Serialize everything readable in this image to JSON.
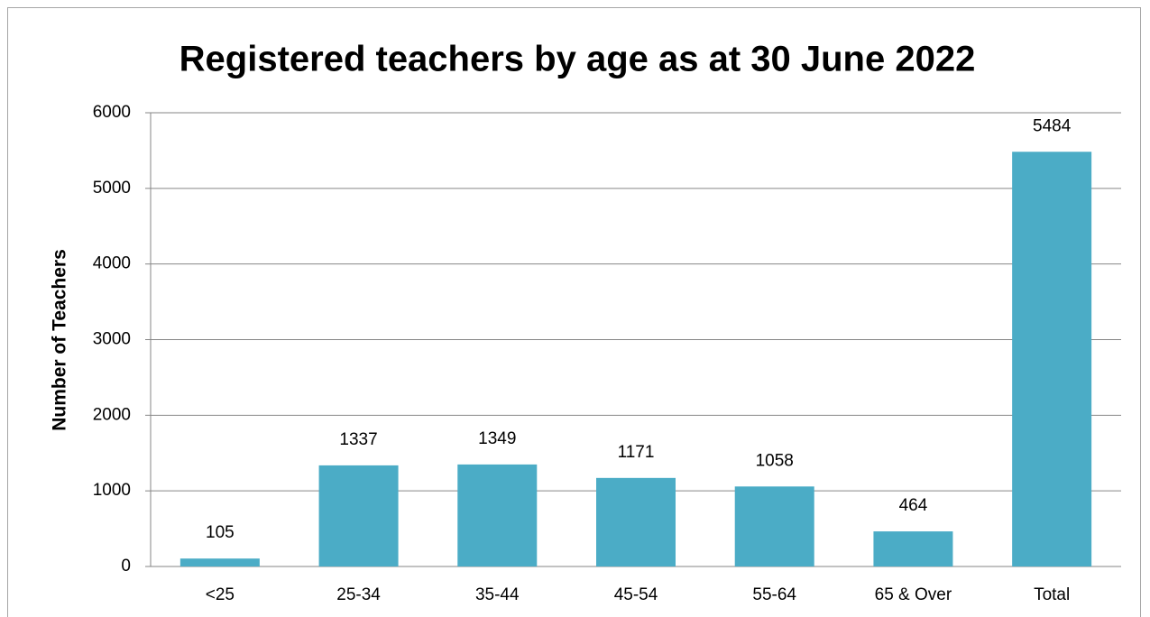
{
  "chart_data": {
    "type": "bar",
    "title": "Registered teachers by age as at 30 June 2022",
    "y_label": "Number of Teachers",
    "categories": [
      "<25",
      "25-34",
      "35-44",
      "45-54",
      "55-64",
      "65 & Over",
      "Total"
    ],
    "values": [
      105,
      1337,
      1349,
      1171,
      1058,
      464,
      5484
    ],
    "color": "#4bacc6",
    "ylim": [
      0,
      6000
    ],
    "yticks": [
      0,
      1000,
      2000,
      3000,
      4000,
      5000,
      6000
    ],
    "grid": true
  }
}
